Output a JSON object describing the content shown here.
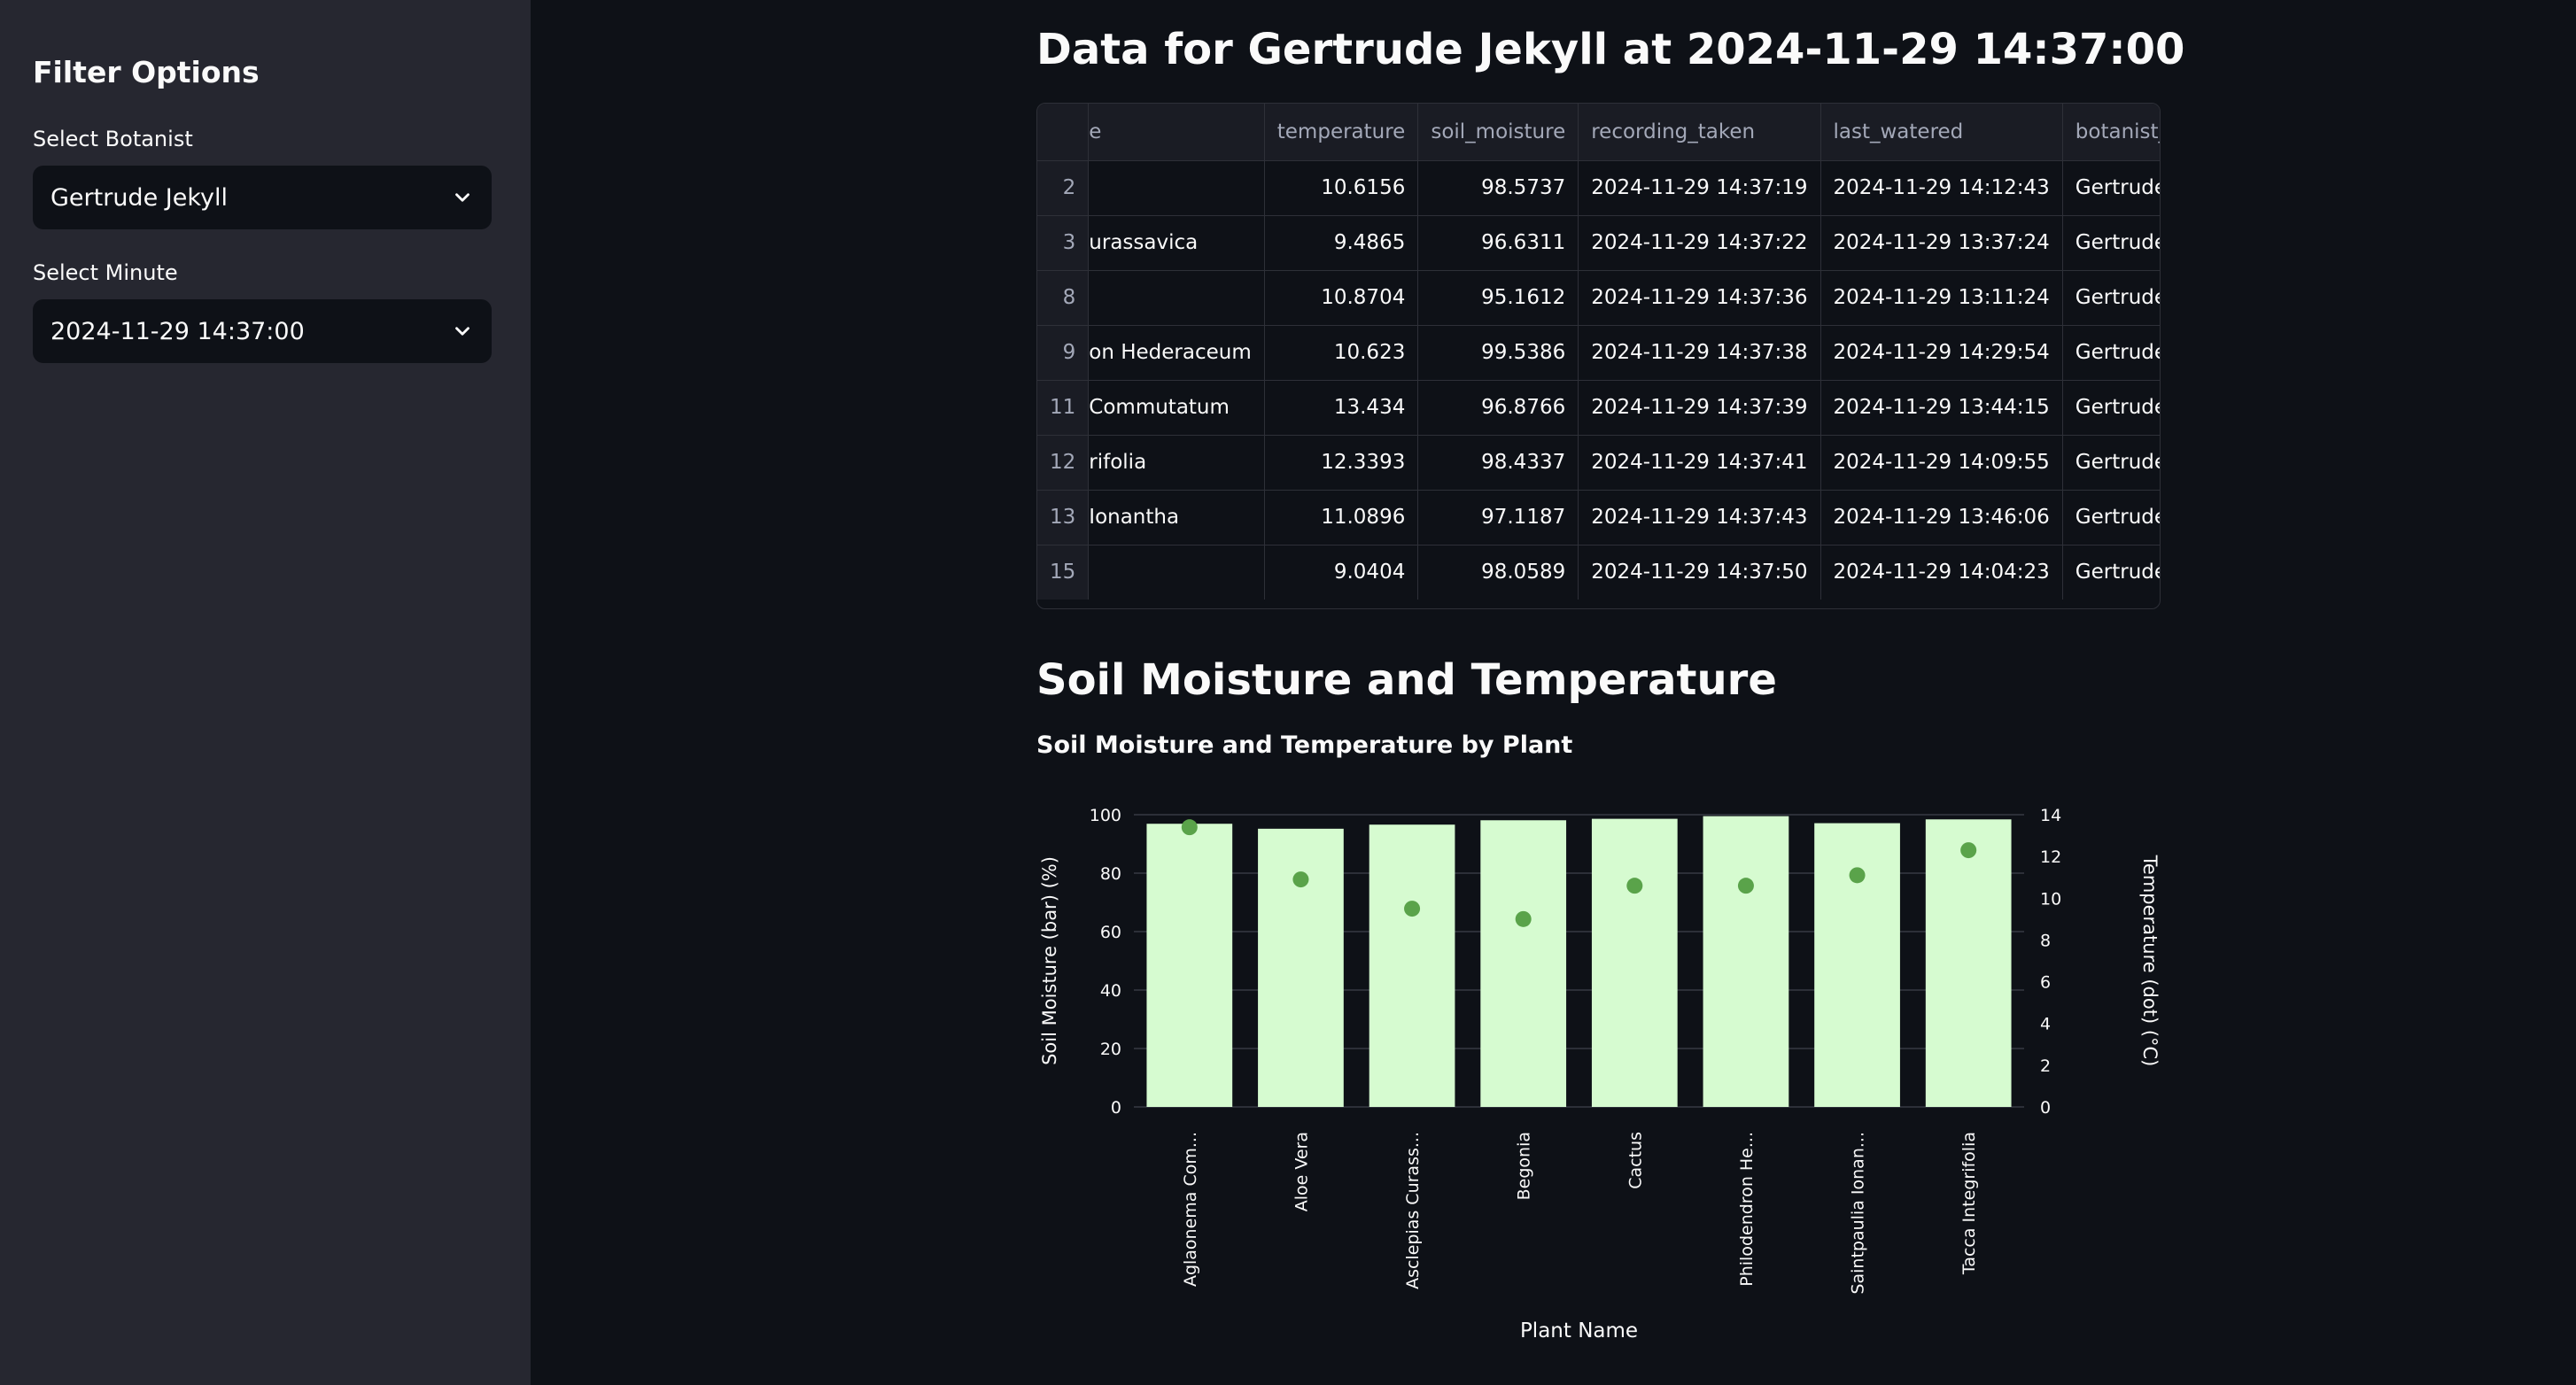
{
  "sidebar": {
    "title": "Filter Options",
    "botanist_label": "Select Botanist",
    "botanist_value": "Gertrude Jekyll",
    "minute_label": "Select Minute",
    "minute_value": "2024-11-29 14:37:00"
  },
  "main": {
    "title": "Data for Gertrude Jekyll at 2024-11-29 14:37:00",
    "section_heading": "Soil Moisture and Temperature"
  },
  "table": {
    "columns": [
      "e",
      "temperature",
      "soil_moisture",
      "recording_taken",
      "last_watered",
      "botanist_name"
    ],
    "rows": [
      {
        "idx": "2",
        "plant": "",
        "temperature": "10.6156",
        "soil_moisture": "98.5737",
        "recording_taken": "2024-11-29 14:37:19",
        "last_watered": "2024-11-29 14:12:43",
        "botanist_name": "Gertrude Jekyll"
      },
      {
        "idx": "3",
        "plant": "urassavica",
        "temperature": "9.4865",
        "soil_moisture": "96.6311",
        "recording_taken": "2024-11-29 14:37:22",
        "last_watered": "2024-11-29 13:37:24",
        "botanist_name": "Gertrude Jekyll"
      },
      {
        "idx": "8",
        "plant": "",
        "temperature": "10.8704",
        "soil_moisture": "95.1612",
        "recording_taken": "2024-11-29 14:37:36",
        "last_watered": "2024-11-29 13:11:24",
        "botanist_name": "Gertrude Jekyll"
      },
      {
        "idx": "9",
        "plant": "on Hederaceum",
        "temperature": "10.623",
        "soil_moisture": "99.5386",
        "recording_taken": "2024-11-29 14:37:38",
        "last_watered": "2024-11-29 14:29:54",
        "botanist_name": "Gertrude Jekyll"
      },
      {
        "idx": "11",
        "plant": "Commutatum",
        "temperature": "13.434",
        "soil_moisture": "96.8766",
        "recording_taken": "2024-11-29 14:37:39",
        "last_watered": "2024-11-29 13:44:15",
        "botanist_name": "Gertrude Jekyll"
      },
      {
        "idx": "12",
        "plant": "rifolia",
        "temperature": "12.3393",
        "soil_moisture": "98.4337",
        "recording_taken": "2024-11-29 14:37:41",
        "last_watered": "2024-11-29 14:09:55",
        "botanist_name": "Gertrude Jekyll"
      },
      {
        "idx": "13",
        "plant": "Ionantha",
        "temperature": "11.0896",
        "soil_moisture": "97.1187",
        "recording_taken": "2024-11-29 14:37:43",
        "last_watered": "2024-11-29 13:46:06",
        "botanist_name": "Gertrude Jekyll"
      },
      {
        "idx": "15",
        "plant": "",
        "temperature": "9.0404",
        "soil_moisture": "98.0589",
        "recording_taken": "2024-11-29 14:37:50",
        "last_watered": "2024-11-29 14:04:23",
        "botanist_name": "Gertrude Jekyll"
      }
    ]
  },
  "chart_data": {
    "type": "bar",
    "title": "Soil Moisture and Temperature by Plant",
    "xlabel": "Plant Name",
    "ylabel": "Soil Moisture (bar) (%)",
    "y2label": "Temperature (dot) (°C)",
    "categories": [
      "Aglaonema Com...",
      "Aloe Vera",
      "Asclepias Curass...",
      "Begonia",
      "Cactus",
      "Philodendron He...",
      "Saintpaulia Ionan...",
      "Tacca Integrifolia"
    ],
    "series": [
      {
        "name": "Soil Moisture (bar) (%)",
        "type": "bar",
        "axis": "left",
        "values": [
          96.9,
          95.2,
          96.6,
          98.1,
          98.6,
          99.5,
          97.1,
          98.4
        ]
      },
      {
        "name": "Temperature (dot) (°C)",
        "type": "scatter",
        "axis": "right",
        "values": [
          13.4,
          10.9,
          9.5,
          9.0,
          10.6,
          10.6,
          11.1,
          12.3
        ]
      }
    ],
    "ylim": [
      0,
      100
    ],
    "y2lim": [
      0,
      14
    ],
    "yticks": [
      0,
      20,
      40,
      60,
      80,
      100
    ],
    "y2ticks": [
      0,
      2,
      4,
      6,
      8,
      10,
      12,
      14
    ],
    "grid": true,
    "colors": {
      "bar": "#d6fbd0",
      "dot": "#5aa34a",
      "grid": "#2c2f38",
      "text": "#fafafa"
    }
  }
}
